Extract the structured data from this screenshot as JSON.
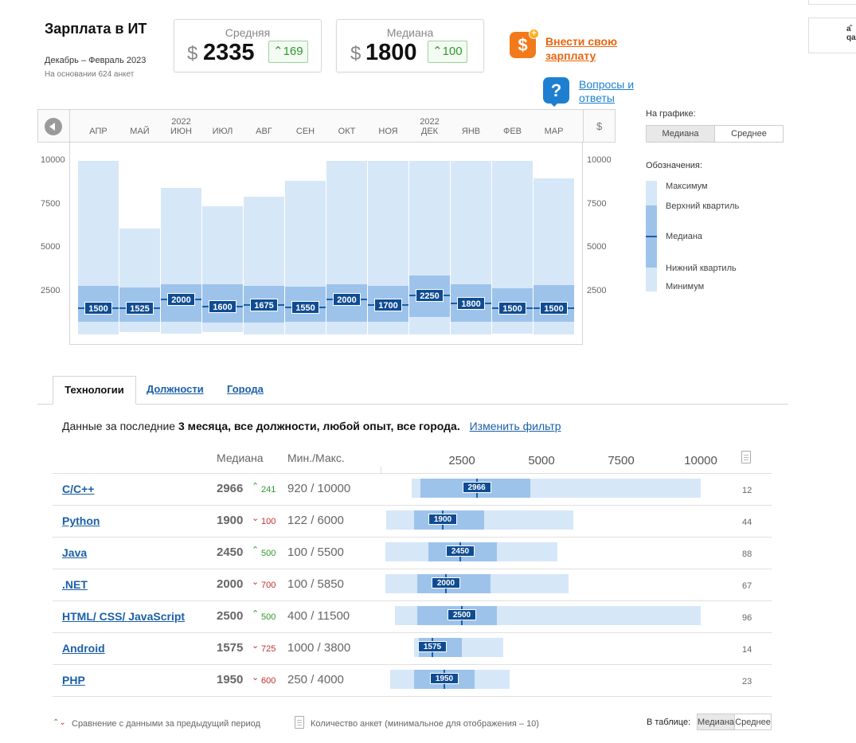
{
  "header": {
    "title": "Зарплата в ИТ",
    "period": "Декабрь – Февраль 2023",
    "basis": "На основании 624 анкет"
  },
  "stats": {
    "average": {
      "label": "Средняя",
      "currency": "$",
      "value": "2335",
      "delta": "169",
      "direction": "up"
    },
    "median": {
      "label": "Медиана",
      "currency": "$",
      "value": "1800",
      "delta": "100",
      "direction": "up"
    }
  },
  "actions": {
    "submit_line1": "Внести свою",
    "submit_line2": "зарплату",
    "faq_line1": "Вопросы и",
    "faq_line2": "ответы",
    "submit_icon": "dollar-plus-icon",
    "faq_icon": "question-bubble-icon"
  },
  "corner_fragment": {
    "top": "а̂",
    "bottom": "qa"
  },
  "chart_header": {
    "currency_symbol": "$"
  },
  "chart_data": {
    "type": "bar",
    "subtype": "box-range",
    "months": [
      "АПР",
      "МАЙ",
      "ИЮН",
      "ИЮЛ",
      "АВГ",
      "СЕН",
      "ОКТ",
      "НОЯ",
      "ДЕК",
      "ЯНВ",
      "ФЕВ",
      "МАР"
    ],
    "years": [
      "",
      "",
      "2022",
      "",
      "",
      "",
      "",
      "",
      "2022",
      "",
      "",
      ""
    ],
    "yticks": [
      "10000",
      "7500",
      "5000",
      "2500"
    ],
    "ytick_values": [
      10000,
      7500,
      5000,
      2500
    ],
    "ylim": [
      0,
      10000
    ],
    "series": {
      "max": [
        10000,
        6100,
        8450,
        7400,
        7950,
        8850,
        10000,
        10000,
        10000,
        10000,
        10000,
        9000
      ],
      "upper_q": [
        2800,
        2700,
        2900,
        2900,
        2800,
        2750,
        2900,
        2800,
        3400,
        2900,
        2650,
        2850
      ],
      "median": [
        1500,
        1525,
        2000,
        1600,
        1675,
        1550,
        2000,
        1700,
        2250,
        1800,
        1500,
        1500
      ],
      "lower_q": [
        750,
        750,
        750,
        700,
        700,
        750,
        750,
        750,
        1000,
        750,
        750,
        750
      ],
      "min": [
        0,
        150,
        50,
        150,
        0,
        0,
        0,
        0,
        0,
        0,
        50,
        0
      ]
    },
    "median_labels": [
      "1500",
      "1525",
      "2000",
      "1600",
      "1675",
      "1550",
      "2000",
      "1700",
      "2250",
      "1800",
      "1500",
      "1500"
    ]
  },
  "legend": {
    "on_chart_label": "На графике:",
    "toggle": [
      "Медиана",
      "Среднее"
    ],
    "toggle_active": 0,
    "symbols_label": "Обозначения:",
    "items": [
      "Максимум",
      "Верхний квартиль",
      "Медиана",
      "Нижний квартиль",
      "Минимум"
    ]
  },
  "tabs": [
    {
      "label": "Технологии",
      "active": true
    },
    {
      "label": "Должности",
      "active": false
    },
    {
      "label": "Города",
      "active": false
    }
  ],
  "filter": {
    "prefix": "Данные за последние",
    "bold": "3 месяца, все должности, любой опыт, все города.",
    "change_link": "Изменить фильтр"
  },
  "table": {
    "headers": {
      "median": "Медиана",
      "minmax": "Мин./Макс."
    },
    "scale_labels": [
      "2500",
      "5000",
      "7500",
      "10000"
    ],
    "scale_values": [
      2500,
      5000,
      7500,
      10000
    ],
    "rows": [
      {
        "name": "C/C++",
        "median": "2966",
        "delta": "241",
        "direction": "up",
        "minmax": "920 / 10000",
        "count": "12",
        "min": 920,
        "lq": 1200,
        "med": 2966,
        "uq": 4650,
        "max": 10000
      },
      {
        "name": "Python",
        "median": "1900",
        "delta": "100",
        "direction": "down",
        "minmax": "122 / 6000",
        "count": "44",
        "min": 122,
        "lq": 1000,
        "med": 1900,
        "uq": 3200,
        "max": 6000
      },
      {
        "name": "Java",
        "median": "2450",
        "delta": "500",
        "direction": "up",
        "minmax": "100 / 5500",
        "count": "88",
        "min": 100,
        "lq": 1450,
        "med": 2450,
        "uq": 3600,
        "max": 5500
      },
      {
        "name": ".NET",
        "median": "2000",
        "delta": "700",
        "direction": "down",
        "minmax": "100 / 5850",
        "count": "67",
        "min": 100,
        "lq": 1100,
        "med": 2000,
        "uq": 3400,
        "max": 5850
      },
      {
        "name": "HTML/ CSS/ JavaScript",
        "median": "2500",
        "delta": "500",
        "direction": "up",
        "minmax": "400 / 11500",
        "count": "96",
        "min": 400,
        "lq": 1100,
        "med": 2500,
        "uq": 3600,
        "max": 10000
      },
      {
        "name": "Android",
        "median": "1575",
        "delta": "725",
        "direction": "down",
        "minmax": "1000 / 3800",
        "count": "14",
        "min": 1000,
        "lq": 1150,
        "med": 1575,
        "uq": 2500,
        "max": 3800
      },
      {
        "name": "PHP",
        "median": "1950",
        "delta": "600",
        "direction": "down",
        "minmax": "250 / 4000",
        "count": "23",
        "min": 250,
        "lq": 1000,
        "med": 1950,
        "uq": 2900,
        "max": 4000
      }
    ]
  },
  "footer": {
    "compare_note": "Сравнение с данными за предыдущий период",
    "count_note": "Количество анкет (минимальное для отображения – 10)",
    "in_table_label": "В таблице:",
    "toggle": [
      "Медиана",
      "Среднее"
    ],
    "toggle_active": 0
  },
  "colors": {
    "range": "#d6e7f8",
    "quartile": "#9dc3eb",
    "median": "#0f4c92",
    "link": "#1c5fa8",
    "orange_link": "#e8650f",
    "up": "#2e9a2e",
    "down": "#c03030"
  }
}
